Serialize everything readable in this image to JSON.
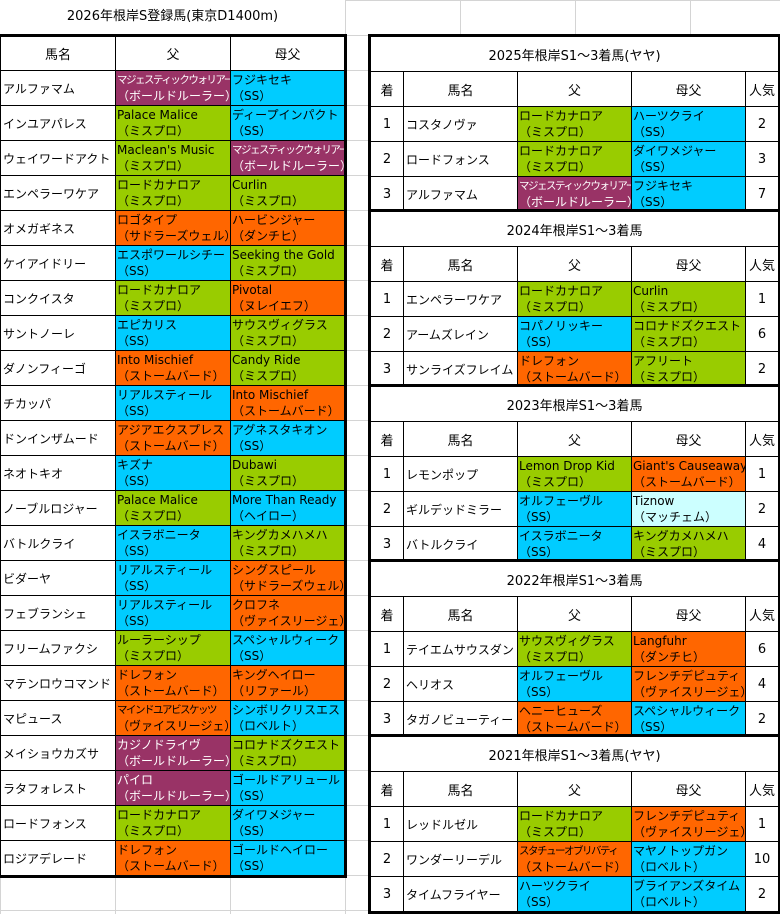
{
  "title": "2026年根岸S登録馬(東京D1400m)",
  "left_table": {
    "headers": [
      "馬名",
      "父",
      "母父"
    ],
    "rows": [
      {
        "name": "アルファマム",
        "sire": "マジェスティックウォリアー",
        "sire_line": "（ボールドルーラー）",
        "sire_color": "purple",
        "bms": "フジキセキ",
        "bms_line": "（SS）",
        "bms_color": "blue"
      },
      {
        "name": "インユアパレス",
        "sire": "Palace Malice",
        "sire_line": "（ミスプロ）",
        "sire_color": "green",
        "bms": "ディープインパクト",
        "bms_line": "（SS）",
        "bms_color": "blue"
      },
      {
        "name": "ウェイワードアクト",
        "sire": "Maclean's Music",
        "sire_line": "（ミスプロ）",
        "sire_color": "green",
        "bms": "マジェスティックウォリアー",
        "bms_line": "（ボールドルーラー）",
        "bms_color": "purple"
      },
      {
        "name": "エンペラーワケア",
        "sire": "ロードカナロア",
        "sire_line": "（ミスプロ）",
        "sire_color": "green",
        "bms": "Curlin",
        "bms_line": "（ミスプロ）",
        "bms_color": "green"
      },
      {
        "name": "オメガギネス",
        "sire": "ロゴタイプ",
        "sire_line": "（サドラーズウェル）",
        "sire_color": "orange",
        "bms": "ハービンジャー",
        "bms_line": "（ダンチヒ）",
        "bms_color": "orange"
      },
      {
        "name": "ケイアイドリー",
        "sire": "エスポワールシチー",
        "sire_line": "（SS）",
        "sire_color": "blue",
        "bms": "Seeking the Gold",
        "bms_line": "（ミスプロ）",
        "bms_color": "green"
      },
      {
        "name": "コンクイスタ",
        "sire": "ロードカナロア",
        "sire_line": "（ミスプロ）",
        "sire_color": "green",
        "bms": "Pivotal",
        "bms_line": "（ヌレイエフ）",
        "bms_color": "orange"
      },
      {
        "name": "サントノーレ",
        "sire": "エピカリス",
        "sire_line": "（SS）",
        "sire_color": "blue",
        "bms": "サウスヴィグラス",
        "bms_line": "（ミスプロ）",
        "bms_color": "green"
      },
      {
        "name": "ダノンフィーゴ",
        "sire": "Into Mischief",
        "sire_line": "（ストームバード）",
        "sire_color": "orange",
        "bms": "Candy Ride",
        "bms_line": "（ミスプロ）",
        "bms_color": "green"
      },
      {
        "name": "チカッパ",
        "sire": "リアルスティール",
        "sire_line": "（SS）",
        "sire_color": "blue",
        "bms": "Into Mischief",
        "bms_line": "（ストームバード）",
        "bms_color": "orange"
      },
      {
        "name": "ドンインザムード",
        "sire": "アジアエクスプレス",
        "sire_line": "（ストームバード）",
        "sire_color": "orange",
        "bms": "アグネスタキオン",
        "bms_line": "（SS）",
        "bms_color": "blue"
      },
      {
        "name": "ネオトキオ",
        "sire": "キズナ",
        "sire_line": "（SS）",
        "sire_color": "blue",
        "bms": "Dubawi",
        "bms_line": "（ミスプロ）",
        "bms_color": "green"
      },
      {
        "name": "ノーブルロジャー",
        "sire": "Palace Malice",
        "sire_line": "（ミスプロ）",
        "sire_color": "green",
        "bms": "More Than Ready",
        "bms_line": "（ヘイロー）",
        "bms_color": "blue"
      },
      {
        "name": "バトルクライ",
        "sire": "イスラボニータ",
        "sire_line": "（SS）",
        "sire_color": "blue",
        "bms": "キングカメハメハ",
        "bms_line": "（ミスプロ）",
        "bms_color": "green"
      },
      {
        "name": "ビダーヤ",
        "sire": "リアルスティール",
        "sire_line": "（SS）",
        "sire_color": "blue",
        "bms": "シングスピール",
        "bms_line": "（サドラーズウェル）",
        "bms_color": "orange"
      },
      {
        "name": "フェブランシェ",
        "sire": "リアルスティール",
        "sire_line": "（SS）",
        "sire_color": "blue",
        "bms": "クロフネ",
        "bms_line": "（ヴァイスリージェ）",
        "bms_color": "orange"
      },
      {
        "name": "フリームファクシ",
        "sire": "ルーラーシップ",
        "sire_line": "（ミスプロ）",
        "sire_color": "green",
        "bms": "スペシャルウィーク",
        "bms_line": "（SS）",
        "bms_color": "blue"
      },
      {
        "name": "マテンロウコマンド",
        "sire": "ドレフォン",
        "sire_line": "（ストームバード）",
        "sire_color": "orange",
        "bms": "キングヘイロー",
        "bms_line": "（リファール）",
        "bms_color": "orange"
      },
      {
        "name": "マピュース",
        "sire": "マインドユアビスケッツ",
        "sire_line": "（ヴァイスリージェ）",
        "sire_color": "orange",
        "bms": "シンボリクリスエス",
        "bms_line": "（ロベルト）",
        "bms_color": "blue"
      },
      {
        "name": "メイショウカズサ",
        "sire": "カジノドライヴ",
        "sire_line": "（ボールドルーラー）",
        "sire_color": "purple",
        "bms": "コロナドズクエスト",
        "bms_line": "（ミスプロ）",
        "bms_color": "green"
      },
      {
        "name": "ラタフォレスト",
        "sire": "パイロ",
        "sire_line": "（ボールドルーラー）",
        "sire_color": "purple",
        "bms": "ゴールドアリュール",
        "bms_line": "（SS）",
        "bms_color": "blue"
      },
      {
        "name": "ロードフォンス",
        "sire": "ロードカナロア",
        "sire_line": "（ミスプロ）",
        "sire_color": "green",
        "bms": "ダイワメジャー",
        "bms_line": "（SS）",
        "bms_color": "blue"
      },
      {
        "name": "ロジアデレード",
        "sire": "ドレフォン",
        "sire_line": "（ストームバード）",
        "sire_color": "orange",
        "bms": "ゴールドヘイロー",
        "bms_line": "（SS）",
        "bms_color": "blue"
      }
    ]
  },
  "right_headers": [
    "着",
    "馬名",
    "父",
    "母父",
    "人気"
  ],
  "past_results": [
    {
      "caption": "2025年根岸S1～3着馬(ヤヤ)",
      "rows": [
        {
          "pos": "1",
          "name": "コスタノヴァ",
          "sire": "ロードカナロア",
          "sire_line": "（ミスプロ）",
          "sire_color": "green",
          "bms": "ハーツクライ",
          "bms_line": "（SS）",
          "bms_color": "blue",
          "pop": "2"
        },
        {
          "pos": "2",
          "name": "ロードフォンス",
          "sire": "ロードカナロア",
          "sire_line": "（ミスプロ）",
          "sire_color": "green",
          "bms": "ダイワメジャー",
          "bms_line": "（SS）",
          "bms_color": "blue",
          "pop": "3"
        },
        {
          "pos": "3",
          "name": "アルファマム",
          "sire": "マジェスティックウォリアー",
          "sire_line": "（ボールドルーラー）",
          "sire_color": "purple",
          "bms": "フジキセキ",
          "bms_line": "（SS）",
          "bms_color": "blue",
          "pop": "7"
        }
      ]
    },
    {
      "caption": "2024年根岸S1～3着馬",
      "rows": [
        {
          "pos": "1",
          "name": "エンペラーワケア",
          "sire": "ロードカナロア",
          "sire_line": "（ミスプロ）",
          "sire_color": "green",
          "bms": "Curlin",
          "bms_line": "（ミスプロ）",
          "bms_color": "green",
          "pop": "1"
        },
        {
          "pos": "2",
          "name": "アームズレイン",
          "sire": "コパノリッキー",
          "sire_line": "（SS）",
          "sire_color": "blue",
          "bms": "コロナドズクエスト",
          "bms_line": "（ミスプロ）",
          "bms_color": "green",
          "pop": "6"
        },
        {
          "pos": "3",
          "name": "サンライズフレイム",
          "sire": "ドレフォン",
          "sire_line": "（ストームバード）",
          "sire_color": "orange",
          "bms": "アフリート",
          "bms_line": "（ミスプロ）",
          "bms_color": "green",
          "pop": "2"
        }
      ]
    },
    {
      "caption": "2023年根岸S1～3着馬",
      "rows": [
        {
          "pos": "1",
          "name": "レモンポップ",
          "sire": "Lemon Drop Kid",
          "sire_line": "（ミスプロ）",
          "sire_color": "green",
          "bms": "Giant's Causeaway",
          "bms_line": "（ストームバード）",
          "bms_color": "orange",
          "pop": "1"
        },
        {
          "pos": "2",
          "name": "ギルデッドミラー",
          "sire": "オルフェーヴル",
          "sire_line": "（SS）",
          "sire_color": "blue",
          "bms": "Tiznow",
          "bms_line": "（マッチェム）",
          "bms_color": "pale",
          "pop": "2"
        },
        {
          "pos": "3",
          "name": "バトルクライ",
          "sire": "イスラボニータ",
          "sire_line": "（SS）",
          "sire_color": "blue",
          "bms": "キングカメハメハ",
          "bms_line": "（ミスプロ）",
          "bms_color": "green",
          "pop": "4"
        }
      ]
    },
    {
      "caption": "2022年根岸S1～3着馬",
      "rows": [
        {
          "pos": "1",
          "name": "テイエムサウスダン",
          "sire": "サウスヴィグラス",
          "sire_line": "（ミスプロ）",
          "sire_color": "green",
          "bms": "Langfuhr",
          "bms_line": "（ダンチヒ）",
          "bms_color": "orange",
          "pop": "6"
        },
        {
          "pos": "2",
          "name": "ヘリオス",
          "sire": "オルフェーヴル",
          "sire_line": "（SS）",
          "sire_color": "blue",
          "bms": "フレンチデピュティ",
          "bms_line": "（ヴァイスリージェ）",
          "bms_color": "orange",
          "pop": "4"
        },
        {
          "pos": "3",
          "name": "タガノビューティー",
          "sire": "ヘニーヒューズ",
          "sire_line": "（ストームバード）",
          "sire_color": "orange",
          "bms": "スペシャルウィーク",
          "bms_line": "（SS）",
          "bms_color": "blue",
          "pop": "2"
        }
      ]
    },
    {
      "caption": "2021年根岸S1～3着馬(ヤヤ)",
      "rows": [
        {
          "pos": "1",
          "name": "レッドルゼル",
          "sire": "ロードカナロア",
          "sire_line": "（ミスプロ）",
          "sire_color": "green",
          "bms": "フレンチデピュティ",
          "bms_line": "（ヴァイスリージェ）",
          "bms_color": "orange",
          "pop": "1"
        },
        {
          "pos": "2",
          "name": "ワンダーリーデル",
          "sire": "スタチューオブリバティ",
          "sire_line": "（ストームバード）",
          "sire_color": "orange",
          "bms": "マヤノトップガン",
          "bms_line": "（ロベルト）",
          "bms_color": "blue",
          "pop": "10"
        },
        {
          "pos": "3",
          "name": "タイムフライヤー",
          "sire": "ハーツクライ",
          "sire_line": "（SS）",
          "sire_color": "blue",
          "bms": "ブライアンズタイム",
          "bms_line": "（ロベルト）",
          "bms_color": "blue",
          "pop": "2"
        }
      ]
    }
  ],
  "colors": {
    "green": "#99cc00",
    "blue": "#00ccff",
    "orange": "#ff6600",
    "purple": "#993366",
    "pale": "#ccffff"
  }
}
